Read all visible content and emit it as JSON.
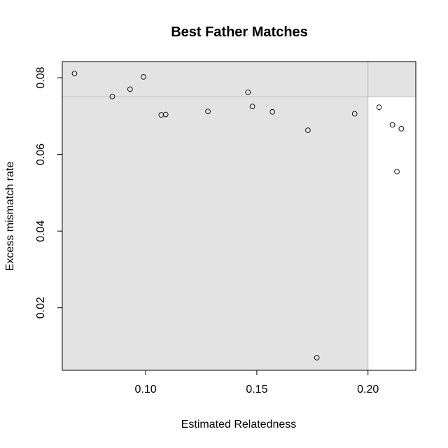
{
  "chart_data": {
    "type": "scatter",
    "title": "Best Father Matches",
    "xlabel": "Estimated Relatedness",
    "ylabel": "Excess mismatch rate",
    "xlim": [
      0.0625,
      0.2215
    ],
    "ylim": [
      0.0037,
      0.0842
    ],
    "x_ticks": [
      {
        "value": 0.1,
        "label": "0.10"
      },
      {
        "value": 0.15,
        "label": "0.15"
      },
      {
        "value": 0.2,
        "label": "0.20"
      }
    ],
    "y_ticks": [
      {
        "value": 0.02,
        "label": "0.02"
      },
      {
        "value": 0.04,
        "label": "0.04"
      },
      {
        "value": 0.06,
        "label": "0.06"
      },
      {
        "value": 0.08,
        "label": "0.08"
      }
    ],
    "thresholds": {
      "x_max": 0.2,
      "y_min": 0.075
    },
    "shaded_color": "#e3e3e3",
    "threshold_line_color": "#bdbdbd",
    "grid": false,
    "points": [
      {
        "x": 0.068,
        "y": 0.0811
      },
      {
        "x": 0.085,
        "y": 0.0751
      },
      {
        "x": 0.093,
        "y": 0.077
      },
      {
        "x": 0.099,
        "y": 0.0802
      },
      {
        "x": 0.107,
        "y": 0.0703
      },
      {
        "x": 0.109,
        "y": 0.0704
      },
      {
        "x": 0.128,
        "y": 0.0712
      },
      {
        "x": 0.146,
        "y": 0.0762
      },
      {
        "x": 0.148,
        "y": 0.0725
      },
      {
        "x": 0.157,
        "y": 0.0711
      },
      {
        "x": 0.173,
        "y": 0.0663
      },
      {
        "x": 0.177,
        "y": 0.007
      },
      {
        "x": 0.194,
        "y": 0.0706
      },
      {
        "x": 0.205,
        "y": 0.0723
      },
      {
        "x": 0.211,
        "y": 0.0677
      },
      {
        "x": 0.213,
        "y": 0.0555
      },
      {
        "x": 0.215,
        "y": 0.0667
      }
    ]
  }
}
